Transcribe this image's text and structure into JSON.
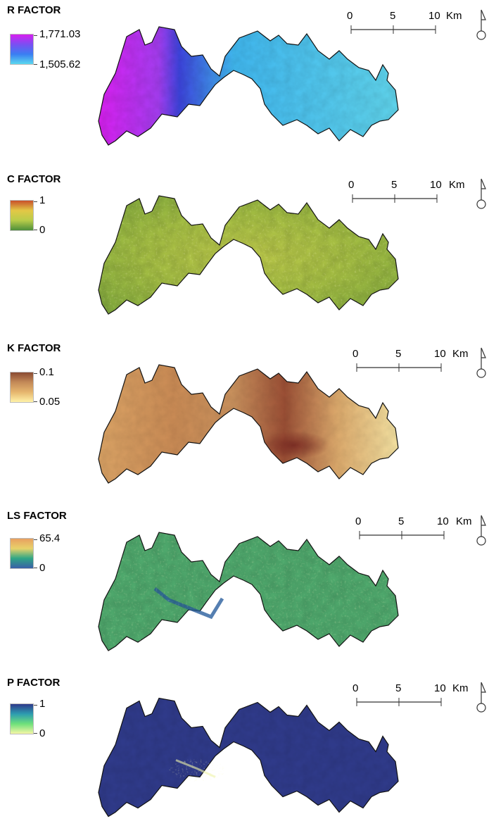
{
  "panels": [
    {
      "id": "r",
      "title": "R FACTOR",
      "max_label": "1,771.03",
      "min_label": "1,505.62",
      "legend_colors": [
        "#d81ff0",
        "#7a4ff2",
        "#3a7ff2",
        "#5bd8ef"
      ]
    },
    {
      "id": "c",
      "title": "C FACTOR",
      "max_label": "1",
      "min_label": "0",
      "legend_colors": [
        "#c8502a",
        "#e3c846",
        "#b8cc4a",
        "#4d8f3a"
      ]
    },
    {
      "id": "k",
      "title": "K FACTOR",
      "max_label": "0.1",
      "min_label": "0.05",
      "legend_colors": [
        "#8a4a32",
        "#c48a58",
        "#e6b66e",
        "#fff2a8"
      ]
    },
    {
      "id": "ls",
      "title": "LS FACTOR",
      "max_label": "65.4",
      "min_label": "0",
      "legend_colors": [
        "#e8a060",
        "#e8d26a",
        "#2fa685",
        "#3a60a8"
      ]
    },
    {
      "id": "p",
      "title": "P FACTOR",
      "max_label": "1",
      "min_label": "0",
      "legend_colors": [
        "#2e3a8c",
        "#2d9db0",
        "#6ee07a",
        "#f4f6a6"
      ]
    }
  ],
  "scale_bar": {
    "ticks": [
      "0",
      "5",
      "10"
    ],
    "unit": "Km"
  },
  "north_arrow": {
    "icon": "north-arrow-icon"
  }
}
